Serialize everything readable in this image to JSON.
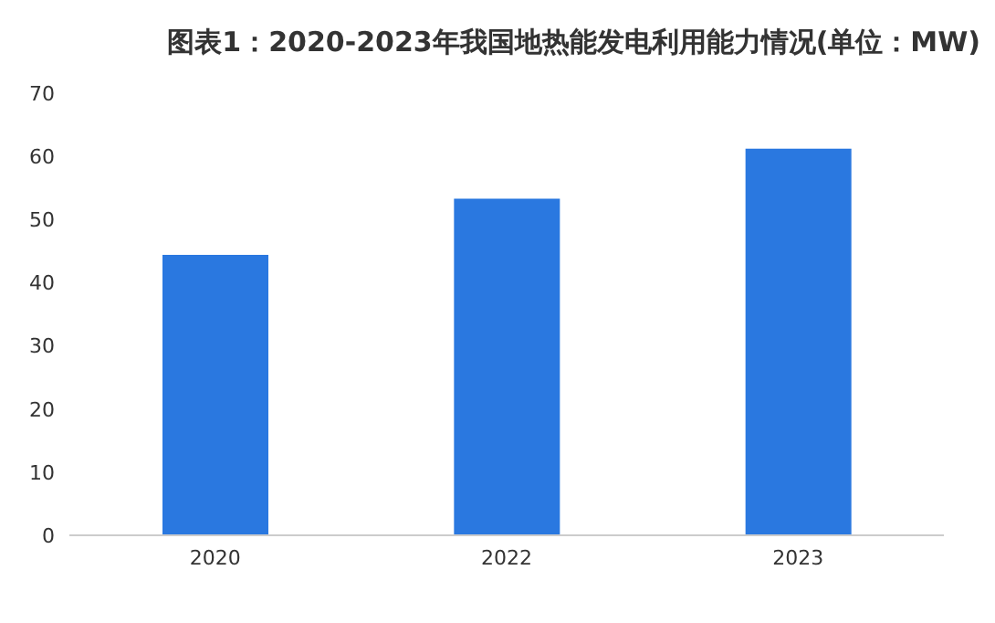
{
  "chart_data": {
    "type": "bar",
    "title": "图表1：2020-2023年我国地热能发电利用能力情况(单位：MW)",
    "categories": [
      "2020",
      "2022",
      "2023"
    ],
    "values": [
      44.4,
      53.3,
      61.2
    ],
    "color": "#2a78e0",
    "ylim": [
      0,
      70
    ],
    "yticks": [
      0,
      10,
      20,
      30,
      40,
      50,
      60,
      70
    ],
    "grid": false
  }
}
